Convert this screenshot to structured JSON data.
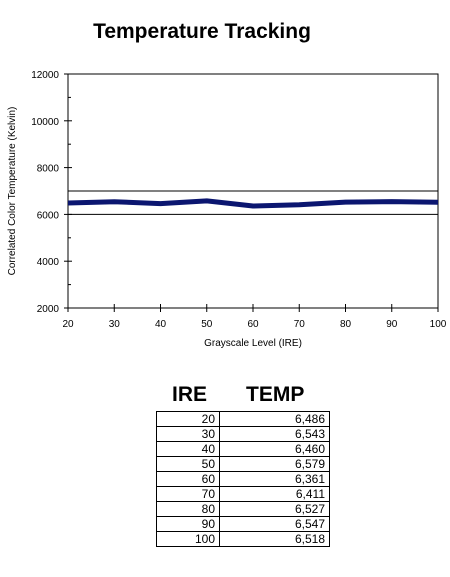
{
  "chart_data": {
    "type": "line",
    "title": "Temperature Tracking",
    "xlabel": "Grayscale Level (IRE)",
    "ylabel": "Correlated Color Temperature (Kelvin)",
    "xlim": [
      20,
      100
    ],
    "ylim": [
      2000,
      12000
    ],
    "xticks": [
      "20",
      "30",
      "40",
      "50",
      "60",
      "70",
      "80",
      "90",
      "100"
    ],
    "yticks": [
      "2000",
      "4000",
      "6000",
      "8000",
      "10000",
      "12000"
    ],
    "grid": false,
    "reference_lines": [
      6000,
      7000
    ],
    "series": [
      {
        "color": "#0b1670",
        "x": [
          20,
          30,
          40,
          50,
          60,
          70,
          80,
          90,
          100
        ],
        "y": [
          6486,
          6543,
          6460,
          6579,
          6361,
          6411,
          6527,
          6547,
          6518
        ]
      }
    ]
  },
  "table": {
    "headers": [
      "IRE",
      "TEMP"
    ],
    "rows": [
      [
        "20",
        "6,486"
      ],
      [
        "30",
        "6,543"
      ],
      [
        "40",
        "6,460"
      ],
      [
        "50",
        "6,579"
      ],
      [
        "60",
        "6,361"
      ],
      [
        "70",
        "6,411"
      ],
      [
        "80",
        "6,527"
      ],
      [
        "90",
        "6,547"
      ],
      [
        "100",
        "6,518"
      ]
    ]
  }
}
